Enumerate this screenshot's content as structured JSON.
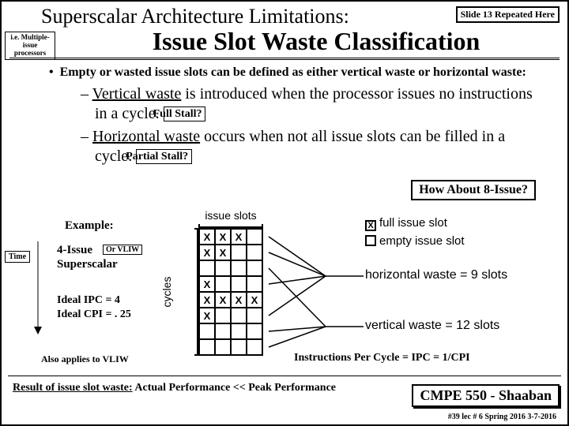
{
  "title_line1": "Superscalar Architecture Limitations:",
  "title_line2": "Issue Slot Waste Classification",
  "repeat_note": "Slide 13 Repeated Here",
  "side_note1": "i.e. Multiple-issue processors",
  "bullet_main": "Empty or wasted issue slots can be defined as either vertical waste or horizontal waste:",
  "sub1_pre": "– ",
  "sub1_ul": "Vertical waste",
  "sub1_post": " is introduced when the processor issues no instructions in a cycle.",
  "full_stall": "Full Stall?",
  "sub2_pre": "– ",
  "sub2_ul": "Horizontal waste",
  "sub2_post": " occurs when not all issue slots can be filled in a cycle.",
  "partial_stall": "Partial Stall?",
  "how8": "How About 8-Issue?",
  "example": "Example:",
  "time": "Time",
  "four_issue_l1": "4-Issue",
  "four_issue_l2": "Superscalar",
  "or_vliw": "Or VLIW",
  "ideal_l1": "Ideal IPC = 4",
  "ideal_l2": "Ideal CPI = . 25",
  "also_vliw": "Also applies to VLIW",
  "ipc_note": "Instructions Per Cycle = IPC = 1/CPI",
  "result_label": "Result of issue slot waste:",
  "result_text": "  Actual Performance << Peak Performance",
  "course": "CMPE 550 - Shaaban",
  "footer": "#39  lec # 6  Spring 2016  3-7-2016",
  "diagram": {
    "issue_slots_label": "issue slots",
    "cycles_label": "cycles",
    "legend_full": "full issue slot",
    "legend_empty": "empty issue slot",
    "hwaste": "horizontal waste = 9 slots",
    "vwaste": "vertical waste = 12 slots",
    "rows": 8,
    "cols": 4,
    "cell": 20,
    "grid_color": "#000000",
    "fill_pattern": [
      [
        1,
        1,
        1,
        0
      ],
      [
        1,
        1,
        0,
        0
      ],
      [
        0,
        0,
        0,
        0
      ],
      [
        1,
        0,
        0,
        0
      ],
      [
        1,
        1,
        1,
        1
      ],
      [
        1,
        0,
        0,
        0
      ],
      [
        0,
        0,
        0,
        0
      ],
      [
        0,
        0,
        0,
        0
      ]
    ],
    "hwaste_rows": [
      0,
      1,
      3,
      5
    ],
    "vwaste_rows": [
      2,
      6,
      7
    ]
  }
}
